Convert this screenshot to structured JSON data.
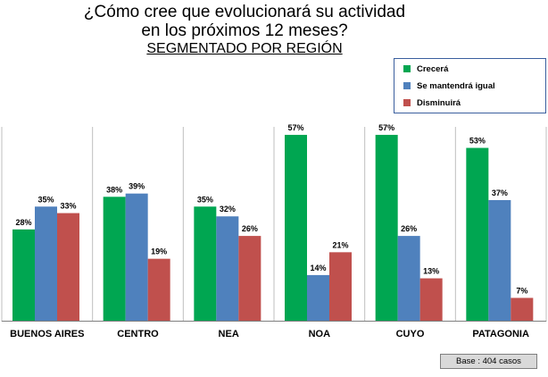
{
  "header": {
    "title_line1": "¿Cómo cree que evolucionará su actividad",
    "title_line2": "en los próximos 12 meses?",
    "subtitle": "SEGMENTADO POR REGIÓN"
  },
  "footer": {
    "base_note": "Base : 404 casos"
  },
  "chart_data": {
    "type": "bar",
    "title": "¿Cómo cree que evolucionará su actividad en los próximos 12 meses?",
    "subtitle": "SEGMENTADO POR REGIÓN",
    "categories": [
      "BUENOS AIRES",
      "CENTRO",
      "NEA",
      "NOA",
      "CUYO",
      "PATAGONIA"
    ],
    "series": [
      {
        "name": "Crecerá",
        "color": "#00a651",
        "values": [
          28,
          38,
          35,
          57,
          57,
          53
        ]
      },
      {
        "name": "Se mantendrá igual",
        "color": "#4f81bd",
        "values": [
          35,
          39,
          32,
          14,
          26,
          37
        ]
      },
      {
        "name": "Disminuirá",
        "color": "#c0504d",
        "values": [
          33,
          19,
          26,
          21,
          13,
          7
        ]
      }
    ],
    "value_suffix": "%",
    "ylim": [
      0,
      60
    ],
    "grid": false,
    "category_separators": true,
    "legend_position": "top-right",
    "xlabel": "",
    "ylabel": ""
  }
}
